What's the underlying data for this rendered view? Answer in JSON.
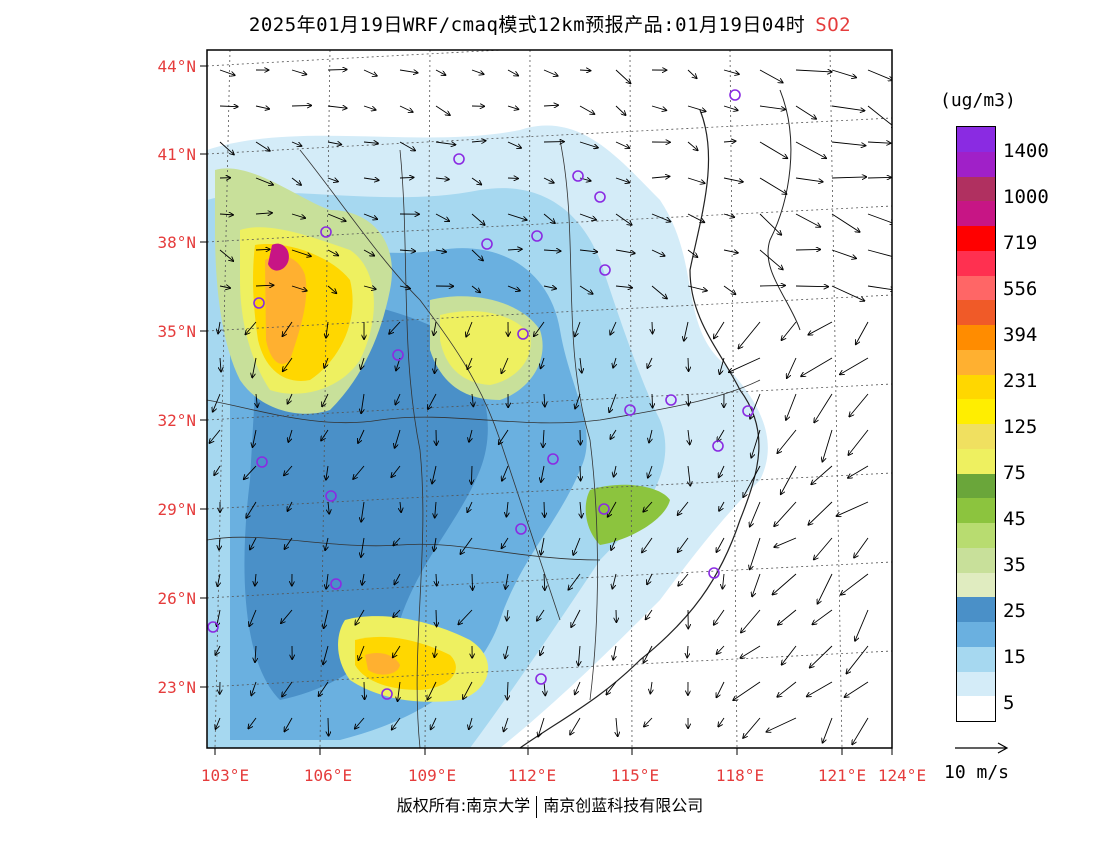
{
  "header": {
    "title": "2025年01月19日WRF/cmaq模式12km预报产品:01月19日04时",
    "pollutant": "SO2"
  },
  "map": {
    "lat_labels": [
      "44°N",
      "41°N",
      "38°N",
      "35°N",
      "32°N",
      "29°N",
      "26°N",
      "23°N"
    ],
    "lon_labels": [
      "103°E",
      "106°E",
      "109°E",
      "112°E",
      "115°E",
      "118°E",
      "121°E",
      "124°E"
    ],
    "colors": {
      "background": "#ffffff",
      "coast": "#222222",
      "arrow": "#000000",
      "station": "#8a2be2"
    }
  },
  "legend": {
    "unit": "(ug/m3)",
    "labels": [
      "1400",
      "1000",
      "719",
      "556",
      "394",
      "231",
      "125",
      "75",
      "45",
      "35",
      "25",
      "15",
      "5"
    ],
    "colors": [
      "#8a2be2",
      "#a020c8",
      "#b03060",
      "#c71585",
      "#ff0000",
      "#ff3050",
      "#ff6666",
      "#f05a28",
      "#ff8c00",
      "#ffb030",
      "#ffd700",
      "#ffee00",
      "#f0e060",
      "#eef060",
      "#6aa63a",
      "#8cc43e",
      "#b8dc70",
      "#c8e09a",
      "#e0ecc0",
      "#4a90c8",
      "#6ab0e0",
      "#a6d8f0",
      "#d4ecf8",
      "#ffffff"
    ]
  },
  "wind": {
    "label": "10 m/s"
  },
  "footer": {
    "copyright_left": "版权所有:南京大学",
    "copyright_right": "南京创蓝科技有限公司"
  }
}
